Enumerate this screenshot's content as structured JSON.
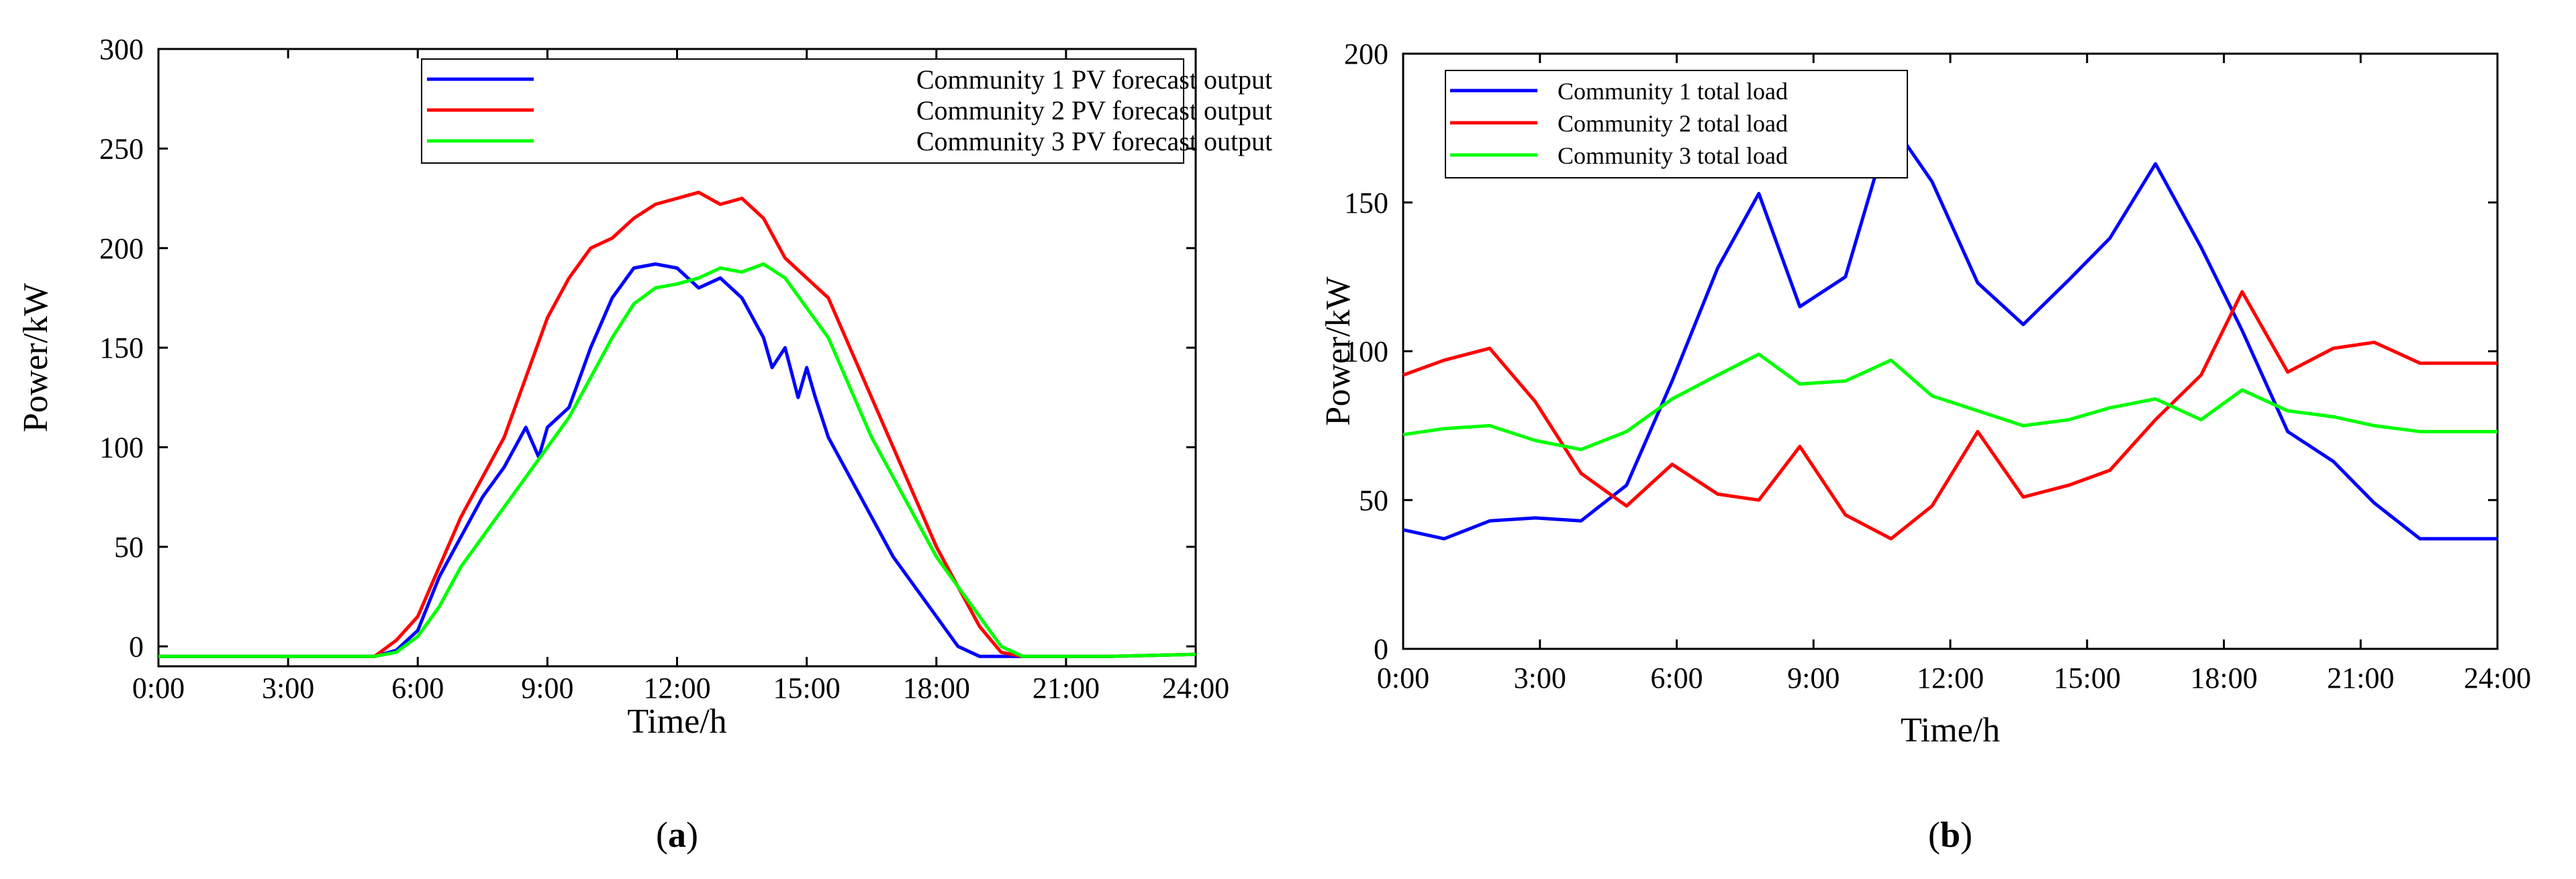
{
  "chart_data": [
    {
      "panel_label": "(a)",
      "type": "line",
      "xlabel": "Time/h",
      "ylabel": "Power/kW",
      "xlim": [
        0,
        24
      ],
      "ylim": [
        -10,
        300
      ],
      "x_ticks": [
        0,
        3,
        6,
        9,
        12,
        15,
        18,
        21,
        24
      ],
      "x_tick_labels": [
        "0:00",
        "3:00",
        "6:00",
        "9:00",
        "12:00",
        "15:00",
        "18:00",
        "21:00",
        "24:00"
      ],
      "y_ticks": [
        0,
        50,
        100,
        150,
        200,
        250,
        300
      ],
      "y_tick_labels": [
        "0",
        "50",
        "100",
        "150",
        "200",
        "250",
        "300"
      ],
      "legend_position": "top-right",
      "series": [
        {
          "name": "Community 1 PV forecast output",
          "color": "#0000ff",
          "x": [
            0,
            3,
            5,
            5.5,
            6,
            6.5,
            7,
            7.5,
            8,
            8.5,
            8.8,
            9,
            9.5,
            10,
            10.5,
            11,
            11.5,
            12,
            12.5,
            13,
            13.5,
            14,
            14.2,
            14.5,
            14.8,
            15,
            15.2,
            15.5,
            16,
            16.5,
            17,
            17.5,
            18,
            18.5,
            19,
            19.5,
            20,
            21,
            22,
            24
          ],
          "values": [
            -5,
            -5,
            -5,
            -2,
            8,
            35,
            55,
            75,
            90,
            110,
            95,
            110,
            120,
            150,
            175,
            190,
            192,
            190,
            180,
            185,
            175,
            155,
            140,
            150,
            125,
            140,
            125,
            105,
            85,
            65,
            45,
            30,
            15,
            0,
            -5,
            -5,
            -5,
            -5,
            -5,
            -4
          ]
        },
        {
          "name": "Community 2 PV forecast output",
          "color": "#ff0000",
          "x": [
            0,
            3,
            5,
            5.5,
            6,
            6.5,
            7,
            7.5,
            8,
            8.5,
            9,
            9.5,
            10,
            10.5,
            11,
            11.5,
            12,
            12.5,
            13,
            13.5,
            14,
            14.5,
            15,
            15.5,
            16,
            16.5,
            17,
            17.5,
            18,
            18.5,
            19,
            19.5,
            20,
            21,
            22,
            24
          ],
          "values": [
            -5,
            -5,
            -5,
            3,
            15,
            40,
            65,
            85,
            105,
            135,
            165,
            185,
            200,
            205,
            215,
            222,
            225,
            228,
            222,
            225,
            215,
            195,
            185,
            175,
            150,
            125,
            100,
            75,
            50,
            30,
            10,
            -3,
            -5,
            -5,
            -5,
            -4
          ]
        },
        {
          "name": "Community 3 PV forecast output",
          "color": "#00ff00",
          "x": [
            0,
            3,
            5,
            5.5,
            6,
            6.5,
            7,
            7.5,
            8,
            8.5,
            9,
            9.5,
            10,
            10.5,
            11,
            11.5,
            12,
            12.5,
            13,
            13.5,
            14,
            14.5,
            15,
            15.5,
            16,
            16.5,
            17,
            17.5,
            18,
            18.5,
            19,
            19.5,
            20,
            21,
            22,
            24
          ],
          "values": [
            -5,
            -5,
            -5,
            -3,
            5,
            20,
            40,
            55,
            70,
            85,
            100,
            115,
            135,
            155,
            172,
            180,
            182,
            185,
            190,
            188,
            192,
            185,
            170,
            155,
            130,
            105,
            85,
            65,
            45,
            30,
            15,
            0,
            -5,
            -5,
            -5,
            -4
          ]
        }
      ]
    },
    {
      "panel_label": "(b)",
      "type": "line",
      "xlabel": "Time/h",
      "ylabel": "Power/kW",
      "xlim": [
        0,
        24
      ],
      "ylim": [
        0,
        200
      ],
      "x_ticks": [
        0,
        3,
        6,
        9,
        12,
        15,
        18,
        21,
        24
      ],
      "x_tick_labels": [
        "0:00",
        "3:00",
        "6:00",
        "9:00",
        "12:00",
        "15:00",
        "18:00",
        "21:00",
        "24:00"
      ],
      "y_ticks": [
        0,
        50,
        100,
        150,
        200
      ],
      "y_tick_labels": [
        "0",
        "50",
        "100",
        "150",
        "200"
      ],
      "legend_position": "top-left",
      "series": [
        {
          "name": "Community 1 total load",
          "color": "#0000ff",
          "x": [
            0,
            0.9,
            1.9,
            2.9,
            3.9,
            4.9,
            5.9,
            6.9,
            7.8,
            8.7,
            9.7,
            10.7,
            11.6,
            12.6,
            13.6,
            14.6,
            15.5,
            16.5,
            17.5,
            18.4,
            19.4,
            20.4,
            21.3,
            22.3,
            23.3,
            24
          ],
          "values": [
            40,
            37,
            43,
            44,
            43,
            55,
            90,
            128,
            153,
            115,
            125,
            177,
            157,
            123,
            109,
            124,
            138,
            163,
            135,
            107,
            73,
            63,
            49,
            37,
            37,
            37
          ]
        },
        {
          "name": "Community 2 total load",
          "color": "#ff0000",
          "x": [
            0,
            0.9,
            1.9,
            2.9,
            3.9,
            4.9,
            5.9,
            6.9,
            7.8,
            8.7,
            9.7,
            10.7,
            11.6,
            12.6,
            13.6,
            14.6,
            15.5,
            16.5,
            17.5,
            18.4,
            19.4,
            20.4,
            21.3,
            22.3,
            23.3,
            24
          ],
          "values": [
            92,
            97,
            101,
            83,
            59,
            48,
            62,
            52,
            50,
            68,
            45,
            37,
            48,
            73,
            51,
            55,
            60,
            77,
            92,
            120,
            93,
            101,
            103,
            96,
            96,
            96
          ]
        },
        {
          "name": "Community 3 total load",
          "color": "#00ff00",
          "x": [
            0,
            0.9,
            1.9,
            2.9,
            3.9,
            4.9,
            5.9,
            6.9,
            7.8,
            8.7,
            9.7,
            10.7,
            11.6,
            12.6,
            13.6,
            14.6,
            15.5,
            16.5,
            17.5,
            18.4,
            19.4,
            20.4,
            21.3,
            22.3,
            23.3,
            24
          ],
          "values": [
            72,
            74,
            75,
            70,
            67,
            73,
            84,
            92,
            99,
            89,
            90,
            97,
            85,
            80,
            75,
            77,
            81,
            84,
            77,
            87,
            80,
            78,
            75,
            73,
            73,
            73
          ]
        }
      ]
    }
  ]
}
